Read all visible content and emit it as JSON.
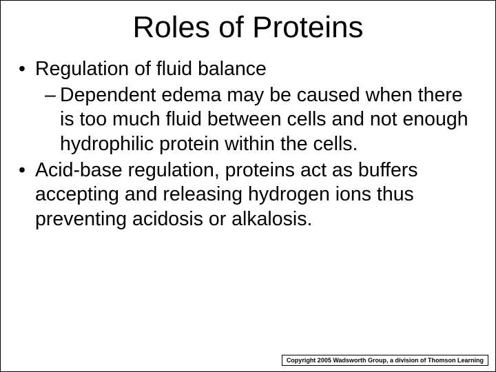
{
  "title": "Roles of Proteins",
  "bullets": [
    {
      "text": "Regulation of fluid balance",
      "subs": [
        {
          "text": "Dependent edema may be caused when there is too much fluid between cells and not enough hydrophilic protein within the cells."
        }
      ]
    },
    {
      "text": "Acid-base regulation, proteins act as buffers accepting and releasing hydrogen ions thus preventing acidosis or alkalosis.",
      "subs": []
    }
  ],
  "copyright": "Copyright 2005 Wadsworth Group, a division of Thomson Learning",
  "marks": {
    "bullet": "•",
    "dash": "–"
  },
  "colors": {
    "text": "#000000",
    "background": "#ffffff",
    "border": "#000000"
  },
  "typography": {
    "title_fontsize": 44,
    "body_fontsize": 28.5,
    "copyright_fontsize": 9,
    "font_family": "Verdana"
  }
}
